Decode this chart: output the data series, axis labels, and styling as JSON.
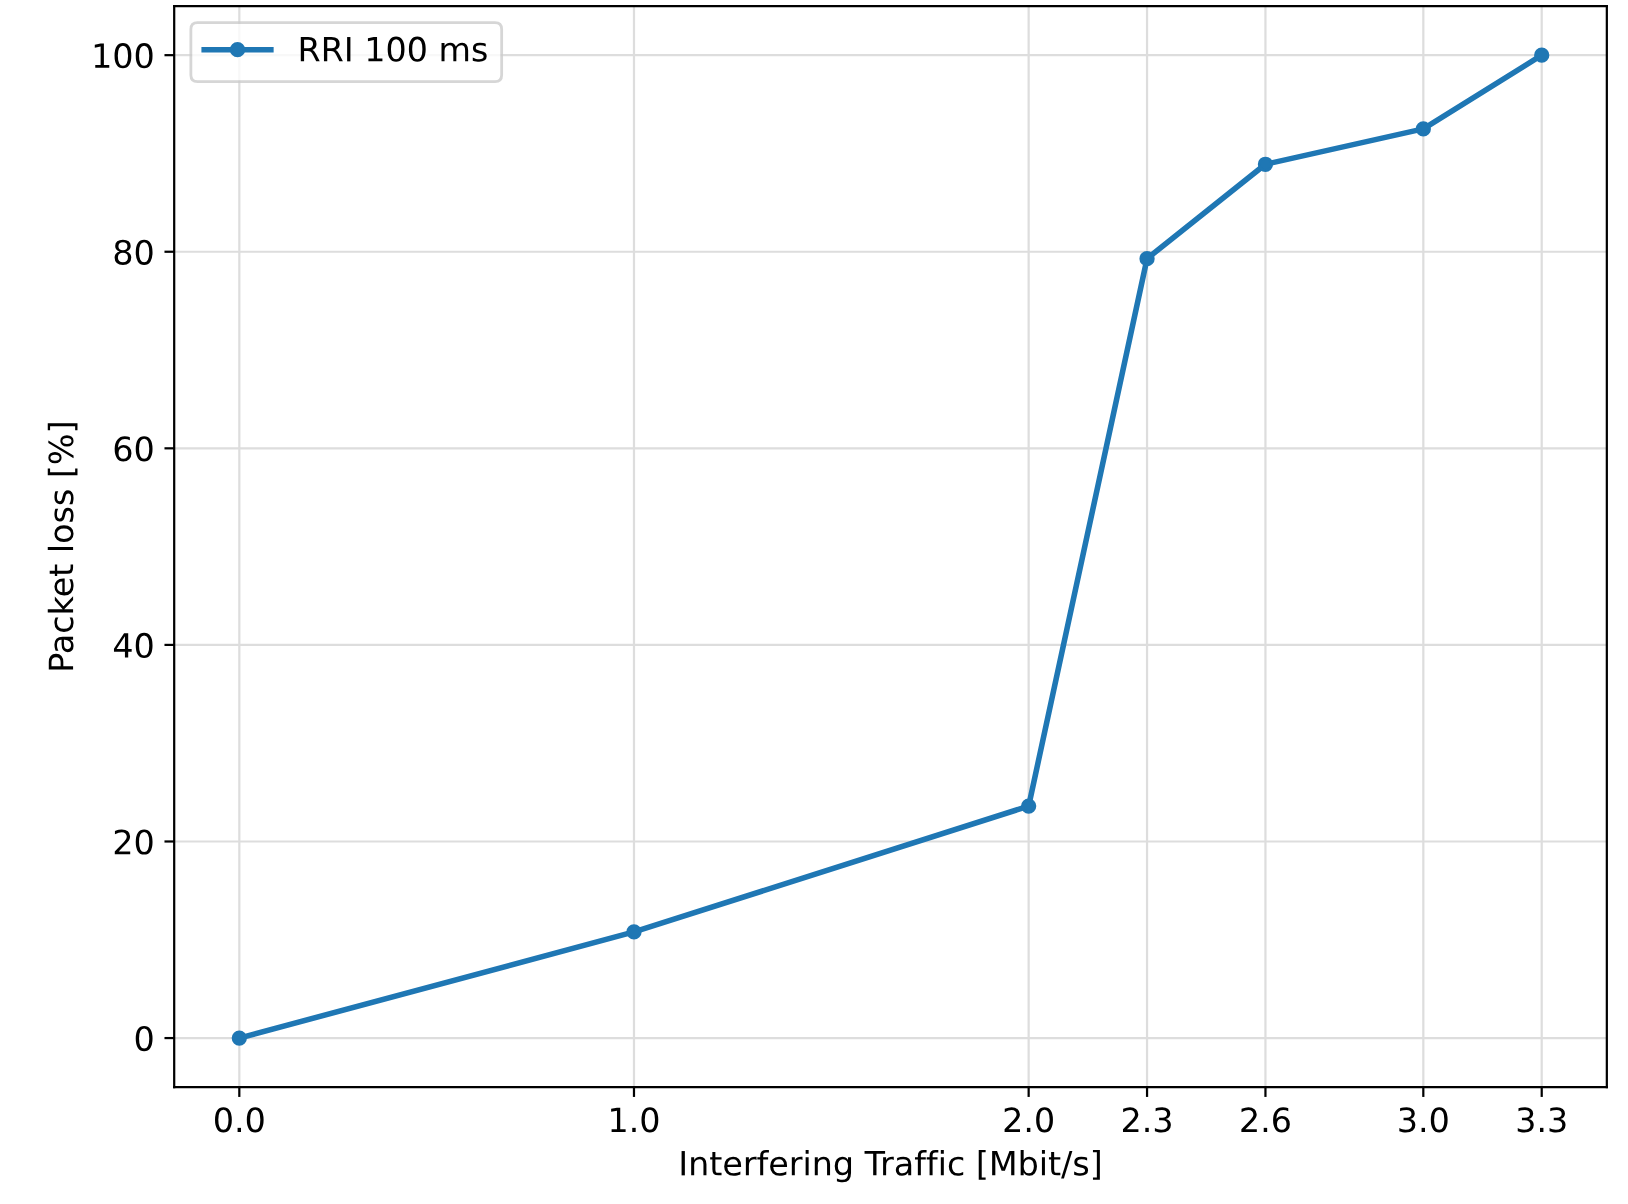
{
  "chart_data": {
    "type": "line",
    "xlabel": "Interfering Traffic [Mbit/s]",
    "ylabel": "Packet loss [%]",
    "x": [
      0.0,
      1.0,
      2.0,
      2.3,
      2.6,
      3.0,
      3.3
    ],
    "series": [
      {
        "name": "RRI 100 ms",
        "color": "#1f77b4",
        "values": [
          0,
          10.8,
          23.6,
          79.3,
          88.9,
          92.5,
          100
        ]
      }
    ],
    "xlim": [
      -0.165,
      3.465
    ],
    "ylim": [
      -5,
      105
    ],
    "xticks": [
      {
        "value": 0,
        "label": "0.0"
      },
      {
        "value": 1,
        "label": "1.0"
      },
      {
        "value": 2,
        "label": "2.0"
      },
      2.3,
      2.6,
      {
        "value": 3,
        "label": "3.0"
      },
      3.3
    ],
    "yticks": [
      0,
      20,
      40,
      60,
      80,
      100
    ],
    "grid": true,
    "legend": "top left",
    "marker": "circle",
    "line_style": "solid"
  }
}
